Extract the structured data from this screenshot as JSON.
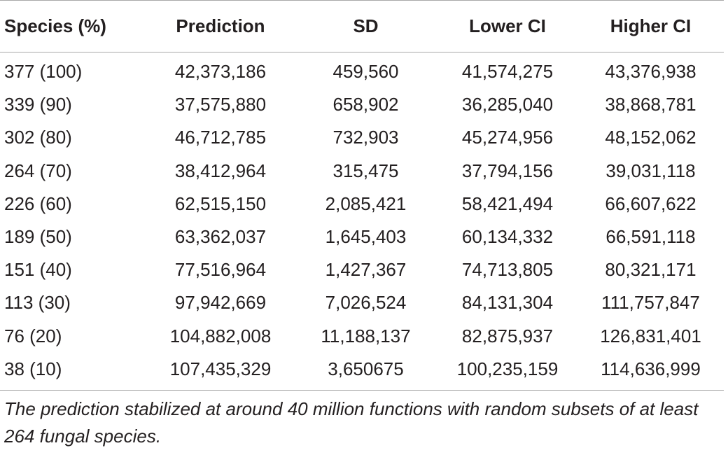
{
  "table": {
    "headers": [
      "Species (%)",
      "Prediction",
      "SD",
      "Lower CI",
      "Higher CI"
    ],
    "rows": [
      [
        "377 (100)",
        "42,373,186",
        "459,560",
        "41,574,275",
        "43,376,938"
      ],
      [
        "339 (90)",
        "37,575,880",
        "658,902",
        "36,285,040",
        "38,868,781"
      ],
      [
        "302 (80)",
        "46,712,785",
        "732,903",
        "45,274,956",
        "48,152,062"
      ],
      [
        "264 (70)",
        "38,412,964",
        "315,475",
        "37,794,156",
        "39,031,118"
      ],
      [
        "226 (60)",
        "62,515,150",
        "2,085,421",
        "58,421,494",
        "66,607,622"
      ],
      [
        "189 (50)",
        "63,362,037",
        "1,645,403",
        "60,134,332",
        "66,591,118"
      ],
      [
        "151 (40)",
        "77,516,964",
        "1,427,367",
        "74,713,805",
        "80,321,171"
      ],
      [
        "113 (30)",
        "97,942,669",
        "7,026,524",
        "84,131,304",
        "111,757,847"
      ],
      [
        "76 (20)",
        "104,882,008",
        "11,188,137",
        "82,875,937",
        "126,831,401"
      ],
      [
        "38 (10)",
        "107,435,329",
        "3,650675",
        "100,235,159",
        "114,636,999"
      ]
    ]
  },
  "caption": "The prediction stabilized at around 40 million functions with random subsets of at least 264 fungal species."
}
